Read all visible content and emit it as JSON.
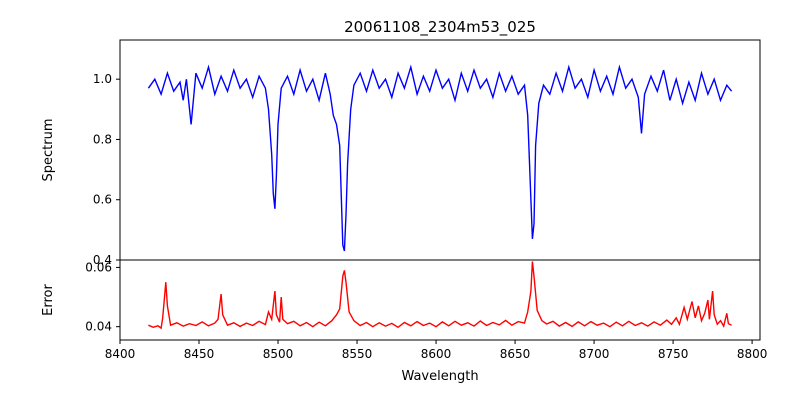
{
  "chart_data": [
    {
      "type": "line",
      "title": "20061108_2304m53_025",
      "ylabel": "Spectrum",
      "xlabel": "",
      "xlim": [
        8400,
        8805
      ],
      "ylim": [
        0.4,
        1.13
      ],
      "yticks": [
        "0.4",
        "0.6",
        "0.8",
        "1.0"
      ],
      "series": [
        {
          "color": "#0000ff",
          "points": [
            [
              8418,
              0.97
            ],
            [
              8422,
              1.0
            ],
            [
              8426,
              0.95
            ],
            [
              8430,
              1.02
            ],
            [
              8434,
              0.96
            ],
            [
              8438,
              0.99
            ],
            [
              8440,
              0.93
            ],
            [
              8442,
              1.0
            ],
            [
              8445,
              0.85
            ],
            [
              8448,
              1.02
            ],
            [
              8452,
              0.97
            ],
            [
              8456,
              1.04
            ],
            [
              8460,
              0.95
            ],
            [
              8464,
              1.01
            ],
            [
              8468,
              0.96
            ],
            [
              8472,
              1.03
            ],
            [
              8476,
              0.97
            ],
            [
              8480,
              1.0
            ],
            [
              8484,
              0.94
            ],
            [
              8488,
              1.01
            ],
            [
              8492,
              0.97
            ],
            [
              8494,
              0.9
            ],
            [
              8496,
              0.75
            ],
            [
              8497,
              0.62
            ],
            [
              8498,
              0.57
            ],
            [
              8499,
              0.68
            ],
            [
              8500,
              0.85
            ],
            [
              8502,
              0.97
            ],
            [
              8506,
              1.01
            ],
            [
              8510,
              0.95
            ],
            [
              8514,
              1.03
            ],
            [
              8518,
              0.96
            ],
            [
              8522,
              1.0
            ],
            [
              8526,
              0.93
            ],
            [
              8530,
              1.02
            ],
            [
              8533,
              0.95
            ],
            [
              8535,
              0.88
            ],
            [
              8537,
              0.85
            ],
            [
              8539,
              0.78
            ],
            [
              8540,
              0.62
            ],
            [
              8541,
              0.45
            ],
            [
              8542,
              0.43
            ],
            [
              8543,
              0.55
            ],
            [
              8544,
              0.72
            ],
            [
              8546,
              0.9
            ],
            [
              8548,
              0.98
            ],
            [
              8552,
              1.02
            ],
            [
              8556,
              0.96
            ],
            [
              8560,
              1.03
            ],
            [
              8564,
              0.97
            ],
            [
              8568,
              1.0
            ],
            [
              8572,
              0.94
            ],
            [
              8576,
              1.02
            ],
            [
              8580,
              0.97
            ],
            [
              8584,
              1.04
            ],
            [
              8588,
              0.95
            ],
            [
              8592,
              1.01
            ],
            [
              8596,
              0.96
            ],
            [
              8600,
              1.03
            ],
            [
              8604,
              0.97
            ],
            [
              8608,
              1.0
            ],
            [
              8612,
              0.93
            ],
            [
              8616,
              1.02
            ],
            [
              8620,
              0.96
            ],
            [
              8624,
              1.03
            ],
            [
              8628,
              0.97
            ],
            [
              8632,
              1.0
            ],
            [
              8636,
              0.94
            ],
            [
              8640,
              1.02
            ],
            [
              8644,
              0.96
            ],
            [
              8648,
              1.01
            ],
            [
              8652,
              0.95
            ],
            [
              8656,
              0.98
            ],
            [
              8658,
              0.88
            ],
            [
              8660,
              0.6
            ],
            [
              8661,
              0.47
            ],
            [
              8662,
              0.52
            ],
            [
              8663,
              0.78
            ],
            [
              8665,
              0.92
            ],
            [
              8668,
              0.98
            ],
            [
              8672,
              0.95
            ],
            [
              8676,
              1.02
            ],
            [
              8680,
              0.96
            ],
            [
              8684,
              1.04
            ],
            [
              8688,
              0.97
            ],
            [
              8692,
              1.0
            ],
            [
              8696,
              0.94
            ],
            [
              8700,
              1.03
            ],
            [
              8704,
              0.96
            ],
            [
              8708,
              1.01
            ],
            [
              8712,
              0.95
            ],
            [
              8716,
              1.04
            ],
            [
              8720,
              0.97
            ],
            [
              8724,
              1.0
            ],
            [
              8728,
              0.94
            ],
            [
              8730,
              0.82
            ],
            [
              8732,
              0.95
            ],
            [
              8736,
              1.01
            ],
            [
              8740,
              0.96
            ],
            [
              8744,
              1.03
            ],
            [
              8748,
              0.93
            ],
            [
              8752,
              1.0
            ],
            [
              8756,
              0.92
            ],
            [
              8760,
              0.99
            ],
            [
              8764,
              0.93
            ],
            [
              8768,
              1.02
            ],
            [
              8772,
              0.95
            ],
            [
              8776,
              1.0
            ],
            [
              8780,
              0.93
            ],
            [
              8784,
              0.98
            ],
            [
              8787,
              0.96
            ]
          ]
        }
      ]
    },
    {
      "type": "line",
      "title": "",
      "ylabel": "Error",
      "xlabel": "Wavelength",
      "xlim": [
        8400,
        8805
      ],
      "ylim": [
        0.0355,
        0.0625
      ],
      "yticks": [
        "0.04",
        "0.06"
      ],
      "xticks": [
        "8400",
        "8450",
        "8500",
        "8550",
        "8600",
        "8650",
        "8700",
        "8750",
        "8800"
      ],
      "series": [
        {
          "color": "#ff0000",
          "points": [
            [
              8418,
              0.0405
            ],
            [
              8421,
              0.0398
            ],
            [
              8424,
              0.0403
            ],
            [
              8426,
              0.0395
            ],
            [
              8427,
              0.043
            ],
            [
              8429,
              0.055
            ],
            [
              8430,
              0.047
            ],
            [
              8432,
              0.0405
            ],
            [
              8436,
              0.0413
            ],
            [
              8440,
              0.0402
            ],
            [
              8444,
              0.041
            ],
            [
              8448,
              0.0404
            ],
            [
              8452,
              0.0416
            ],
            [
              8456,
              0.0403
            ],
            [
              8460,
              0.0412
            ],
            [
              8462,
              0.0425
            ],
            [
              8464,
              0.051
            ],
            [
              8465,
              0.044
            ],
            [
              8468,
              0.0405
            ],
            [
              8472,
              0.0413
            ],
            [
              8476,
              0.0401
            ],
            [
              8480,
              0.0412
            ],
            [
              8484,
              0.0404
            ],
            [
              8488,
              0.0418
            ],
            [
              8492,
              0.0407
            ],
            [
              8494,
              0.045
            ],
            [
              8496,
              0.0425
            ],
            [
              8498,
              0.052
            ],
            [
              8499,
              0.044
            ],
            [
              8501,
              0.0415
            ],
            [
              8502,
              0.05
            ],
            [
              8503,
              0.0425
            ],
            [
              8506,
              0.041
            ],
            [
              8510,
              0.0418
            ],
            [
              8514,
              0.0403
            ],
            [
              8518,
              0.0414
            ],
            [
              8522,
              0.04
            ],
            [
              8526,
              0.0415
            ],
            [
              8530,
              0.0403
            ],
            [
              8534,
              0.042
            ],
            [
              8537,
              0.044
            ],
            [
              8539,
              0.046
            ],
            [
              8541,
              0.057
            ],
            [
              8542,
              0.059
            ],
            [
              8543,
              0.055
            ],
            [
              8545,
              0.045
            ],
            [
              8548,
              0.042
            ],
            [
              8552,
              0.0404
            ],
            [
              8556,
              0.0414
            ],
            [
              8560,
              0.04
            ],
            [
              8564,
              0.0413
            ],
            [
              8568,
              0.0402
            ],
            [
              8572,
              0.0411
            ],
            [
              8576,
              0.0398
            ],
            [
              8580,
              0.0414
            ],
            [
              8584,
              0.0403
            ],
            [
              8588,
              0.0417
            ],
            [
              8592,
              0.0404
            ],
            [
              8596,
              0.0412
            ],
            [
              8600,
              0.04
            ],
            [
              8604,
              0.0416
            ],
            [
              8608,
              0.0403
            ],
            [
              8612,
              0.0418
            ],
            [
              8616,
              0.0405
            ],
            [
              8620,
              0.0413
            ],
            [
              8624,
              0.0402
            ],
            [
              8628,
              0.0419
            ],
            [
              8632,
              0.0404
            ],
            [
              8636,
              0.0414
            ],
            [
              8640,
              0.0406
            ],
            [
              8644,
              0.0421
            ],
            [
              8648,
              0.0405
            ],
            [
              8652,
              0.0417
            ],
            [
              8656,
              0.0412
            ],
            [
              8658,
              0.045
            ],
            [
              8660,
              0.052
            ],
            [
              8661,
              0.062
            ],
            [
              8662,
              0.057
            ],
            [
              8664,
              0.0455
            ],
            [
              8667,
              0.042
            ],
            [
              8670,
              0.0409
            ],
            [
              8674,
              0.0418
            ],
            [
              8678,
              0.0402
            ],
            [
              8682,
              0.0414
            ],
            [
              8686,
              0.0401
            ],
            [
              8690,
              0.0416
            ],
            [
              8694,
              0.0403
            ],
            [
              8698,
              0.0417
            ],
            [
              8702,
              0.0405
            ],
            [
              8706,
              0.0412
            ],
            [
              8710,
              0.04
            ],
            [
              8714,
              0.0415
            ],
            [
              8718,
              0.0403
            ],
            [
              8722,
              0.0418
            ],
            [
              8726,
              0.0404
            ],
            [
              8730,
              0.0413
            ],
            [
              8734,
              0.0402
            ],
            [
              8738,
              0.0416
            ],
            [
              8742,
              0.0405
            ],
            [
              8746,
              0.0422
            ],
            [
              8749,
              0.0408
            ],
            [
              8752,
              0.043
            ],
            [
              8754,
              0.0408
            ],
            [
              8757,
              0.0465
            ],
            [
              8759,
              0.0425
            ],
            [
              8762,
              0.0485
            ],
            [
              8764,
              0.043
            ],
            [
              8766,
              0.047
            ],
            [
              8768,
              0.042
            ],
            [
              8770,
              0.0445
            ],
            [
              8772,
              0.049
            ],
            [
              8773,
              0.0425
            ],
            [
              8775,
              0.052
            ],
            [
              8776,
              0.044
            ],
            [
              8778,
              0.0408
            ],
            [
              8780,
              0.042
            ],
            [
              8782,
              0.0402
            ],
            [
              8784,
              0.0445
            ],
            [
              8785,
              0.041
            ],
            [
              8787,
              0.0405
            ]
          ]
        }
      ]
    }
  ]
}
